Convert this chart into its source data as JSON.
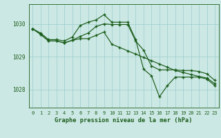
{
  "title": "Graphe pression niveau de la mer (hPa)",
  "bg_color": "#cce8e4",
  "grid_color": "#99cccc",
  "line_color": "#1a5c1a",
  "hours": [
    0,
    1,
    2,
    3,
    4,
    5,
    6,
    7,
    8,
    9,
    10,
    11,
    12,
    13,
    14,
    15,
    16,
    17,
    18,
    19,
    20,
    21,
    22,
    23
  ],
  "series_high": [
    1029.85,
    1029.72,
    1029.52,
    1029.52,
    1029.48,
    1029.6,
    1029.95,
    1030.05,
    1030.12,
    1030.28,
    1030.05,
    1030.05,
    1030.05,
    1029.52,
    1028.62,
    1028.42,
    1027.78,
    1028.12,
    1028.38,
    1028.38,
    1028.38,
    1028.38,
    1028.32,
    1028.12
  ],
  "series_avg": [
    1029.85,
    1029.68,
    1029.48,
    1029.48,
    1029.42,
    1029.5,
    1029.55,
    1029.55,
    1029.65,
    1029.75,
    1029.38,
    1029.28,
    1029.18,
    1029.08,
    1028.98,
    1028.88,
    1028.78,
    1028.68,
    1028.58,
    1028.52,
    1028.46,
    1028.4,
    1028.35,
    1028.18
  ],
  "series_low": [
    1029.85,
    1029.68,
    1029.48,
    1029.48,
    1029.42,
    1029.5,
    1029.62,
    1029.72,
    1029.92,
    1030.0,
    1029.98,
    1029.98,
    1029.98,
    1029.48,
    1029.2,
    1028.72,
    1028.6,
    1028.6,
    1028.6,
    1028.58,
    1028.58,
    1028.55,
    1028.48,
    1028.28
  ],
  "ylim": [
    1027.45,
    1030.6
  ],
  "yticks": [
    1028,
    1029,
    1030
  ],
  "xticks": [
    0,
    1,
    2,
    3,
    4,
    5,
    6,
    7,
    8,
    9,
    10,
    11,
    12,
    13,
    14,
    15,
    16,
    17,
    18,
    19,
    20,
    21,
    22,
    23
  ]
}
